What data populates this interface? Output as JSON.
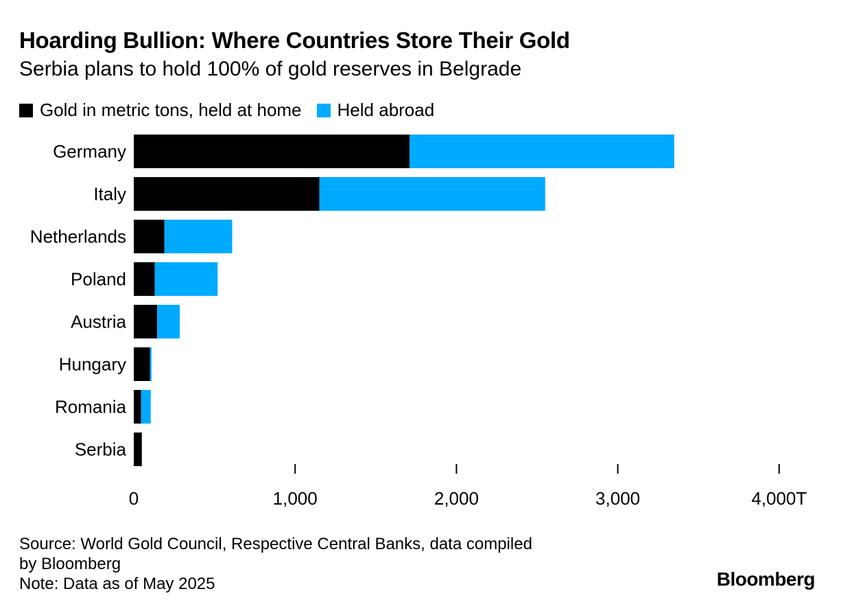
{
  "header": {
    "title": "Hoarding Bullion: Where Countries Store Their Gold",
    "subtitle": "Serbia plans to hold 100% of gold reserves in Belgrade"
  },
  "legend": {
    "home_label": "Gold in metric tons, held at home",
    "abroad_label": "Held abroad"
  },
  "colors": {
    "home": "#000000",
    "abroad": "#00aaff"
  },
  "chart_data": {
    "type": "bar",
    "orientation": "horizontal",
    "stacked": true,
    "title": "Hoarding Bullion: Where Countries Store Their Gold",
    "subtitle": "Serbia plans to hold 100% of gold reserves in Belgrade",
    "categories": [
      "Germany",
      "Italy",
      "Netherlands",
      "Poland",
      "Austria",
      "Hungary",
      "Romania",
      "Serbia"
    ],
    "series": [
      {
        "name": "Gold in metric tons, held at home",
        "values": [
          1710,
          1150,
          190,
          130,
          145,
          100,
          45,
          50
        ]
      },
      {
        "name": "Held abroad",
        "values": [
          1640,
          1400,
          420,
          390,
          140,
          10,
          60,
          0
        ]
      }
    ],
    "xlim": [
      0,
      4000
    ],
    "xticks": [
      0,
      1000,
      2000,
      3000,
      4000
    ],
    "xtick_labels": [
      "0",
      "1,000",
      "2,000",
      "3,000",
      "4,000T"
    ],
    "grid": false,
    "legend_position": "top-left"
  },
  "footer": {
    "source_line1": "Source: World Gold Council, Respective Central Banks, data compiled",
    "source_line2": "by Bloomberg",
    "note": "Note: Data as of May 2025",
    "brand": "Bloomberg"
  }
}
